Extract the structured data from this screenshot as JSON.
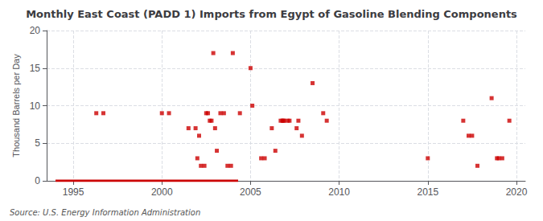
{
  "chart_data": {
    "type": "scatter",
    "title": "Monthly East Coast (PADD 1) Imports from Egypt of Gasoline Blending Components",
    "ylabel": "Thousand Barrels per Day",
    "annotation": "Source: U.S. Energy Information Administration",
    "xlim": [
      1993.5,
      2020.5
    ],
    "ylim": [
      0,
      20
    ],
    "xticks": [
      1995,
      2000,
      2005,
      2010,
      2015,
      2020
    ],
    "yticks": [
      0,
      5,
      10,
      15,
      20
    ],
    "grid": true,
    "series": [
      {
        "type": "scatter",
        "marker": "square",
        "color": "#cc0000",
        "x": [
          1996.3,
          1996.7,
          2000.0,
          2000.4,
          2001.5,
          2001.9,
          2002.0,
          2002.2,
          2002.4,
          2002.1,
          2002.5,
          2002.6,
          2002.7,
          2002.8,
          2002.9,
          2003.0,
          2003.1,
          2003.3,
          2003.5,
          2003.7,
          2003.9,
          2004.0,
          2004.4,
          2005.0,
          2005.1,
          2005.6,
          2005.8,
          2006.2,
          2006.4,
          2006.7,
          2006.8,
          2006.85,
          2006.9,
          2007.1,
          2007.2,
          2007.6,
          2007.7,
          2007.9,
          2008.5,
          2009.1,
          2009.3,
          2015.0,
          2017.0,
          2017.3,
          2017.5,
          2017.8,
          2018.6,
          2018.9,
          2019.0,
          2019.2,
          2019.6
        ],
        "values": [
          9,
          9,
          9,
          9,
          7,
          7,
          3,
          2,
          2,
          6,
          9,
          9,
          8,
          8,
          17,
          7,
          4,
          9,
          9,
          2,
          2,
          17,
          9,
          15,
          10,
          3,
          3,
          7,
          4,
          8,
          8,
          8,
          8,
          8,
          8,
          7,
          8,
          6,
          13,
          9,
          8,
          3,
          8,
          6,
          6,
          2,
          11,
          3,
          3,
          3,
          8
        ]
      },
      {
        "type": "line",
        "line_style": "solid",
        "color": "#cc0000",
        "x": [
          1994.0,
          2004.3
        ],
        "values": [
          0,
          0
        ]
      }
    ]
  }
}
